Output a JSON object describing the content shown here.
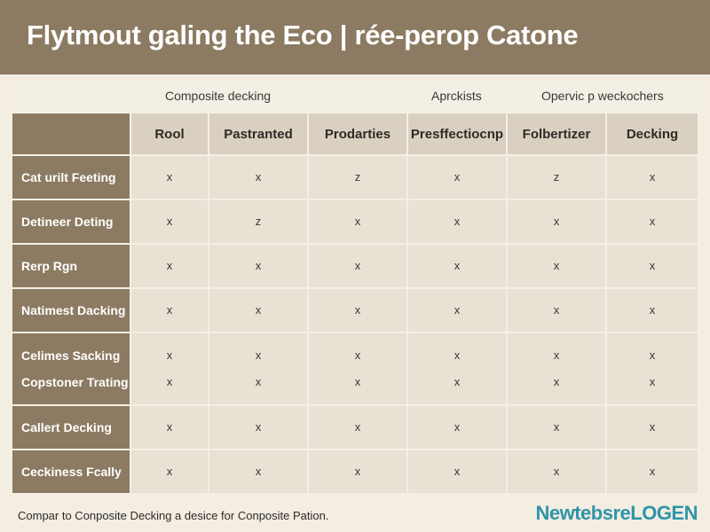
{
  "header": {
    "title": "Flytmout galing the Eco | rée-perop Catone"
  },
  "groups": [
    "Composite decking",
    "Aprckists",
    "Opervic p weckochers"
  ],
  "columns": [
    "Rool",
    "Pastranted",
    "Prodarties",
    "Presffectiocnp",
    "Folbertizer",
    "Decking"
  ],
  "rows": [
    {
      "labels": [
        "Cat urilt Feeting"
      ],
      "cells": [
        [
          "x"
        ],
        [
          "x"
        ],
        [
          "z"
        ],
        [
          "x"
        ],
        [
          "z"
        ],
        [
          "x"
        ]
      ]
    },
    {
      "labels": [
        "Detineer Deting"
      ],
      "cells": [
        [
          "x"
        ],
        [
          "z"
        ],
        [
          "x"
        ],
        [
          "x"
        ],
        [
          "x"
        ],
        [
          "x"
        ]
      ]
    },
    {
      "labels": [
        "Rerp Rgn"
      ],
      "cells": [
        [
          "x"
        ],
        [
          "x"
        ],
        [
          "x"
        ],
        [
          "x"
        ],
        [
          "x"
        ],
        [
          "x"
        ]
      ]
    },
    {
      "labels": [
        "Natimest Dacking"
      ],
      "cells": [
        [
          "x"
        ],
        [
          "x"
        ],
        [
          "x"
        ],
        [
          "x"
        ],
        [
          "x"
        ],
        [
          "x"
        ]
      ]
    },
    {
      "labels": [
        "Celimes Sacking",
        "Copstoner Trating"
      ],
      "cells": [
        [
          "x",
          "x"
        ],
        [
          "x",
          "x"
        ],
        [
          "x",
          "x"
        ],
        [
          "x",
          "x"
        ],
        [
          "x",
          "x"
        ],
        [
          "x",
          "x"
        ]
      ]
    },
    {
      "labels": [
        "Callert Decking"
      ],
      "cells": [
        [
          "x"
        ],
        [
          "x"
        ],
        [
          "x"
        ],
        [
          "x"
        ],
        [
          "x"
        ],
        [
          "x"
        ]
      ]
    },
    {
      "labels": [
        "Ceckiness Fcally"
      ],
      "cells": [
        [
          "x"
        ],
        [
          "x"
        ],
        [
          "x"
        ],
        [
          "x"
        ],
        [
          "x"
        ],
        [
          "x"
        ]
      ]
    }
  ],
  "footer": {
    "note": "Compar to Conposite Decking a desice for Conposite Pation.",
    "brand": "NewtebsreLOGEN"
  }
}
